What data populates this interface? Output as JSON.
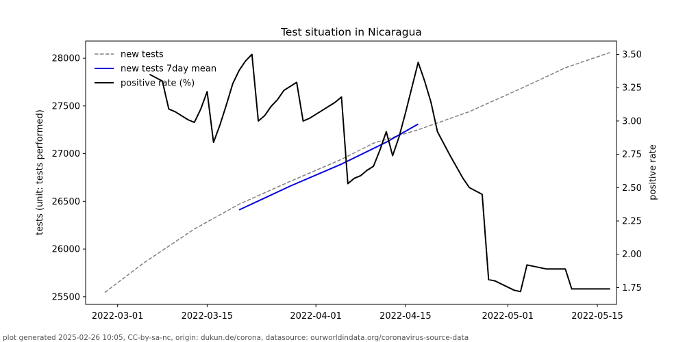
{
  "chart_data": {
    "type": "line",
    "title": "Test situation in Nicaragua",
    "ylabel": "tests (unit: tests performed)",
    "y2label": "positive rate",
    "ylim": [
      25420,
      28180
    ],
    "y2lim": [
      1.624,
      3.6
    ],
    "xlim": [
      "2022-02-24",
      "2022-05-18"
    ],
    "yticks": [
      25500,
      26000,
      26500,
      27000,
      27500,
      28000
    ],
    "y2ticks": [
      1.75,
      2.0,
      2.25,
      2.5,
      2.75,
      3.0,
      3.25,
      3.5
    ],
    "y2tick_labels": [
      "1.75",
      "2.00",
      "2.25",
      "2.50",
      "2.75",
      "3.00",
      "3.25",
      "3.50"
    ],
    "xticks": [
      "2022-03-01",
      "2022-03-15",
      "2022-04-01",
      "2022-04-15",
      "2022-05-01",
      "2022-05-15"
    ],
    "legend_position": "top-left",
    "grid": false,
    "series": [
      {
        "name": "new tests",
        "axis": "left",
        "color": "#808080",
        "style": "dashed",
        "points": [
          [
            "2022-02-27",
            25545
          ],
          [
            "2022-03-05",
            25850
          ],
          [
            "2022-03-13",
            26210
          ],
          [
            "2022-03-20",
            26470
          ],
          [
            "2022-03-28",
            26710
          ],
          [
            "2022-04-05",
            26940
          ],
          [
            "2022-04-10",
            27110
          ],
          [
            "2022-04-17",
            27250
          ],
          [
            "2022-04-25",
            27440
          ],
          [
            "2022-05-03",
            27680
          ],
          [
            "2022-05-10",
            27900
          ],
          [
            "2022-05-17",
            28060
          ]
        ]
      },
      {
        "name": "new tests 7day mean",
        "axis": "left",
        "color": "#0000dd",
        "style": "solid",
        "points": [
          [
            "2022-03-20",
            26410
          ],
          [
            "2022-03-28",
            26660
          ],
          [
            "2022-04-05",
            26890
          ],
          [
            "2022-04-12",
            27120
          ],
          [
            "2022-04-17",
            27310
          ]
        ]
      },
      {
        "name": "positive rate (%)",
        "axis": "right",
        "color": "#000000",
        "style": "solid",
        "points": [
          [
            "2022-03-06",
            3.35
          ],
          [
            "2022-03-08",
            3.3
          ],
          [
            "2022-03-09",
            3.09
          ],
          [
            "2022-03-10",
            3.07
          ],
          [
            "2022-03-12",
            3.01
          ],
          [
            "2022-03-13",
            2.99
          ],
          [
            "2022-03-14",
            3.09
          ],
          [
            "2022-03-15",
            3.22
          ],
          [
            "2022-03-16",
            2.84
          ],
          [
            "2022-03-17",
            2.97
          ],
          [
            "2022-03-18",
            3.12
          ],
          [
            "2022-03-19",
            3.28
          ],
          [
            "2022-03-20",
            3.38
          ],
          [
            "2022-03-21",
            3.45
          ],
          [
            "2022-03-22",
            3.5
          ],
          [
            "2022-03-23",
            3.0
          ],
          [
            "2022-03-24",
            3.04
          ],
          [
            "2022-03-25",
            3.11
          ],
          [
            "2022-03-26",
            3.16
          ],
          [
            "2022-03-27",
            3.23
          ],
          [
            "2022-03-29",
            3.29
          ],
          [
            "2022-03-30",
            3.0
          ],
          [
            "2022-03-31",
            3.02
          ],
          [
            "2022-04-01",
            3.05
          ],
          [
            "2022-04-02",
            3.08
          ],
          [
            "2022-04-03",
            3.11
          ],
          [
            "2022-04-04",
            3.14
          ],
          [
            "2022-04-05",
            3.18
          ],
          [
            "2022-04-06",
            2.53
          ],
          [
            "2022-04-07",
            2.57
          ],
          [
            "2022-04-08",
            2.59
          ],
          [
            "2022-04-09",
            2.63
          ],
          [
            "2022-04-10",
            2.66
          ],
          [
            "2022-04-11",
            2.78
          ],
          [
            "2022-04-12",
            2.92
          ],
          [
            "2022-04-13",
            2.74
          ],
          [
            "2022-04-14",
            2.88
          ],
          [
            "2022-04-15",
            3.06
          ],
          [
            "2022-04-17",
            3.44
          ],
          [
            "2022-04-18",
            3.3
          ],
          [
            "2022-04-19",
            3.14
          ],
          [
            "2022-04-20",
            2.92
          ],
          [
            "2022-04-22",
            2.74
          ],
          [
            "2022-04-24",
            2.57
          ],
          [
            "2022-04-25",
            2.5
          ],
          [
            "2022-04-27",
            2.45
          ],
          [
            "2022-04-28",
            1.81
          ],
          [
            "2022-04-29",
            1.8
          ],
          [
            "2022-05-02",
            1.73
          ],
          [
            "2022-05-03",
            1.72
          ],
          [
            "2022-05-04",
            1.92
          ],
          [
            "2022-05-07",
            1.89
          ],
          [
            "2022-05-10",
            1.89
          ],
          [
            "2022-05-11",
            1.74
          ],
          [
            "2022-05-17",
            1.74
          ]
        ]
      }
    ]
  },
  "footer": "plot generated 2025-02-26 10:05, CC-by-sa-nc, origin: dukun.de/corona, datasource: ourworldindata.org/coronavirus-source-data"
}
